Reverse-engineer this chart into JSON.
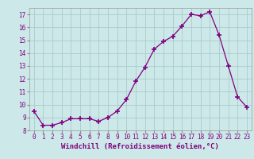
{
  "x": [
    0,
    1,
    2,
    3,
    4,
    5,
    6,
    7,
    8,
    9,
    10,
    11,
    12,
    13,
    14,
    15,
    16,
    17,
    18,
    19,
    20,
    21,
    22,
    23
  ],
  "y": [
    9.5,
    8.4,
    8.4,
    8.6,
    8.9,
    8.9,
    8.9,
    8.7,
    9.0,
    9.5,
    10.4,
    11.8,
    12.9,
    14.3,
    14.9,
    15.3,
    16.1,
    17.0,
    16.9,
    17.2,
    15.4,
    13.0,
    10.6,
    9.8
  ],
  "line_color": "#800080",
  "marker": "+",
  "marker_size": 4,
  "bg_color": "#cce8e8",
  "grid_color": "#aacccc",
  "xlabel": "Windchill (Refroidissement éolien,°C)",
  "ylim": [
    8,
    17.5
  ],
  "xlim": [
    -0.5,
    23.5
  ],
  "yticks": [
    8,
    9,
    10,
    11,
    12,
    13,
    14,
    15,
    16,
    17
  ],
  "xticks": [
    0,
    1,
    2,
    3,
    4,
    5,
    6,
    7,
    8,
    9,
    10,
    11,
    12,
    13,
    14,
    15,
    16,
    17,
    18,
    19,
    20,
    21,
    22,
    23
  ],
  "tick_fontsize": 5.5,
  "label_fontsize": 6.5
}
